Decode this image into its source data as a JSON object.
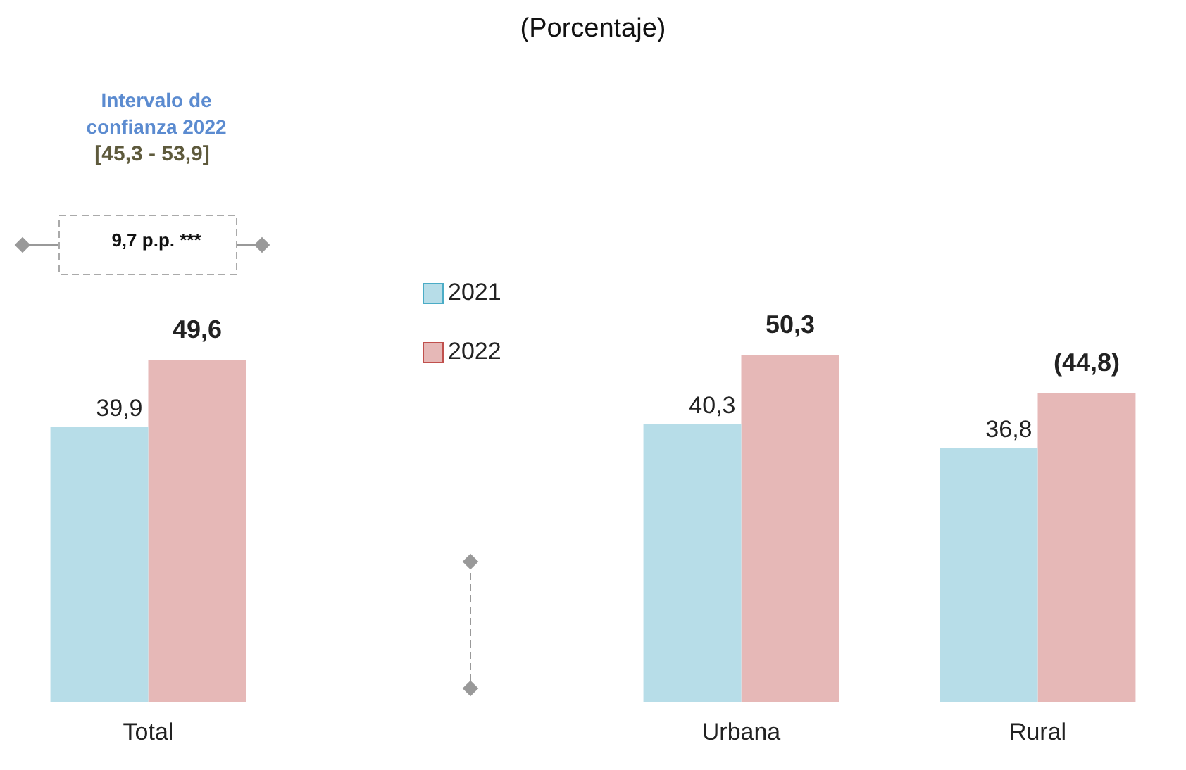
{
  "chart_data": {
    "type": "bar",
    "title": "(Porcentaje)",
    "categories": [
      "Total",
      null,
      "Urbana",
      "Rural"
    ],
    "series": [
      {
        "name": "2021",
        "color": "#b7dde8",
        "values": [
          39.9,
          null,
          40.3,
          36.8
        ],
        "value_labels": [
          "39,9",
          null,
          "40,3",
          "36,8"
        ]
      },
      {
        "name": "2022",
        "color": "#e6b8b7",
        "values": [
          49.6,
          null,
          50.3,
          44.8
        ],
        "value_labels": [
          "49,6",
          null,
          "50,3",
          "(44,8)"
        ]
      }
    ],
    "annotations": [
      "Intervalo de confianza 2022",
      "[45,3 - 53,9]",
      "9,7 p.p. ***"
    ],
    "legend": "top left",
    "grid": false
  }
}
